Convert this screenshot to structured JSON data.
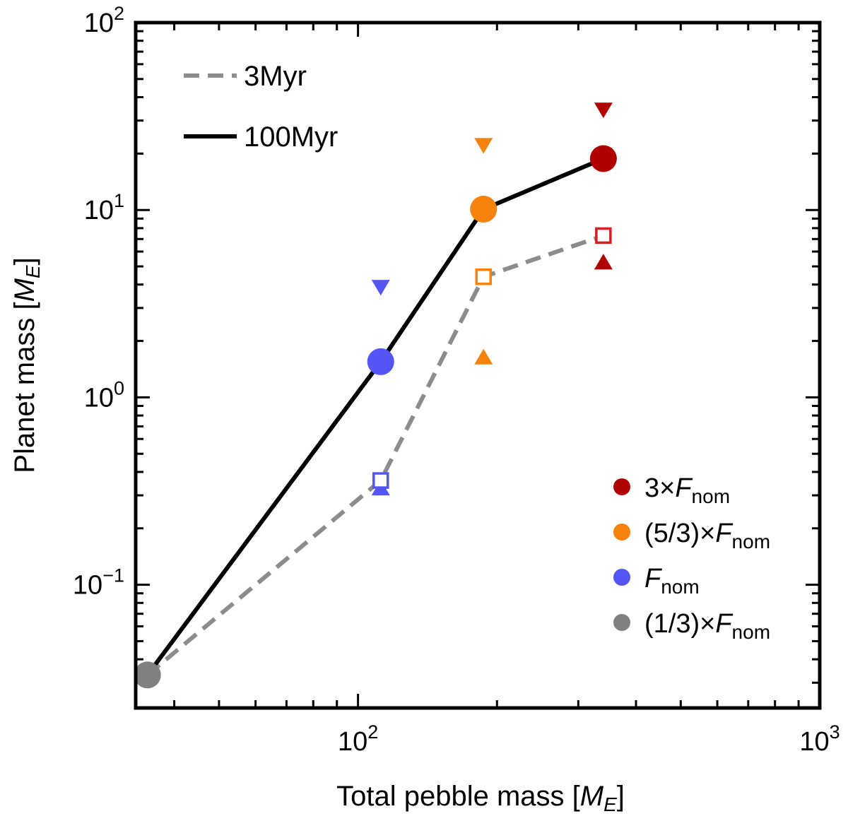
{
  "chart_data": {
    "type": "line",
    "xscale": "log",
    "yscale": "log",
    "xlabel_text": "Total pebble mass [",
    "xlabel_var": "M",
    "xlabel_sub": "E",
    "xlabel_close": "]",
    "ylabel_text": "Planet mass [",
    "ylabel_var": "M",
    "ylabel_sub": "E",
    "ylabel_close": "]",
    "xlim": [
      33,
      1000
    ],
    "ylim": [
      0.022,
      100
    ],
    "x_ticks": [
      {
        "value": 100,
        "base": "10",
        "exp": "2"
      },
      {
        "value": 1000,
        "base": "10",
        "exp": "3"
      }
    ],
    "y_ticks": [
      {
        "value": 0.1,
        "base": "10",
        "exp": "−1"
      },
      {
        "value": 1,
        "base": "10",
        "exp": "0"
      },
      {
        "value": 10,
        "base": "10",
        "exp": "1"
      },
      {
        "value": 100,
        "base": "10",
        "exp": "2"
      }
    ],
    "x": [
      35,
      112,
      187,
      340
    ],
    "series": [
      {
        "name": "3Myr",
        "style": "dashed",
        "color": "#8c8c8c",
        "values": [
          0.033,
          0.36,
          4.4,
          7.3
        ]
      },
      {
        "name": "100Myr",
        "style": "solid",
        "color": "#000000",
        "values": [
          0.033,
          1.55,
          10.1,
          18.8
        ]
      }
    ],
    "line_legend": [
      {
        "label": "3Myr",
        "style": "dashed",
        "color": "#8c8c8c"
      },
      {
        "label": "100Myr",
        "style": "solid",
        "color": "#000000"
      }
    ],
    "markers": [
      {
        "group": "(1/3)×F_nom",
        "color": "#808080",
        "x": 35,
        "circle": 0.033,
        "square": null,
        "tri_down": null,
        "tri_up": null
      },
      {
        "group": "F_nom",
        "color": "#5555f5",
        "x": 112,
        "circle": 1.55,
        "square": 0.36,
        "tri_down": 3.85,
        "tri_up": 0.33
      },
      {
        "group": "(5/3)×F_nom",
        "color": "#f5820d",
        "x": 187,
        "circle": 10.1,
        "square": 4.4,
        "tri_down": 22,
        "tri_up": 1.65
      },
      {
        "group": "3×F_nom",
        "color": "#b00000",
        "x": 340,
        "circle": 18.8,
        "square": 7.3,
        "tri_down": 34,
        "tri_up": 5.3
      }
    ],
    "square_color_3x": "#d42020",
    "marker_legend": [
      {
        "prefix": "3×",
        "var": "F",
        "sub": "nom",
        "color": "#b00000"
      },
      {
        "prefix": "(5/3)×",
        "var": "F",
        "sub": "nom",
        "color": "#f5820d"
      },
      {
        "prefix": "",
        "var": "F",
        "sub": "nom",
        "color": "#5555f5"
      },
      {
        "prefix": "(1/3)×",
        "var": "F",
        "sub": "nom",
        "color": "#808080"
      }
    ]
  }
}
